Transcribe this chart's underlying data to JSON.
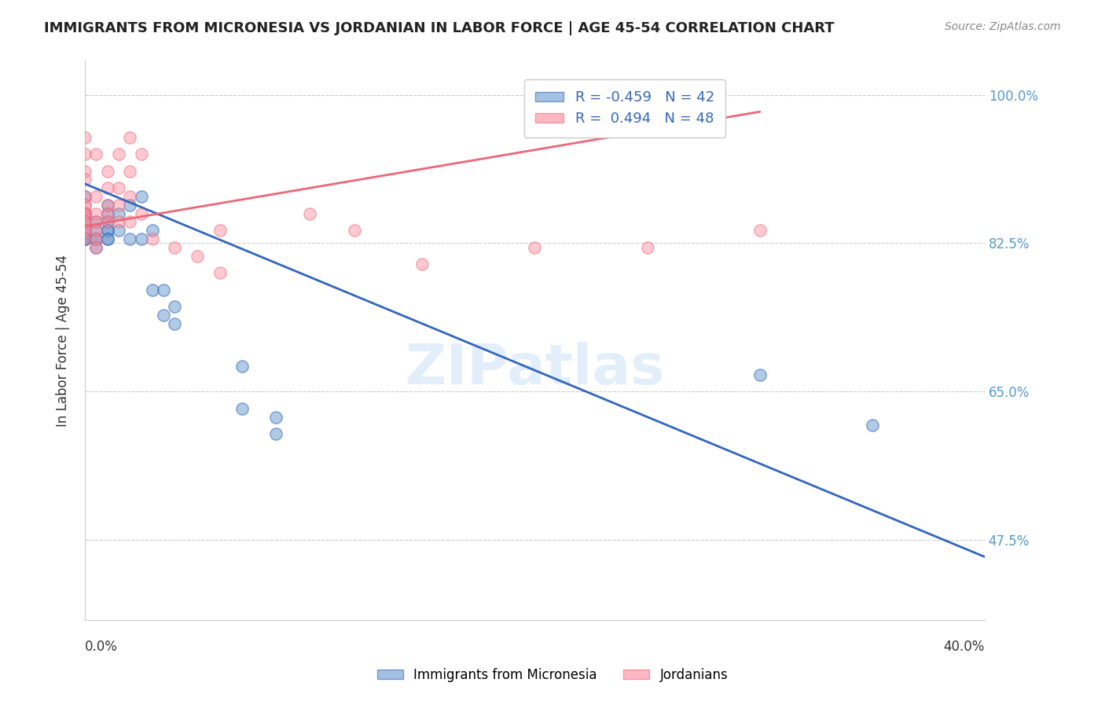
{
  "title": "IMMIGRANTS FROM MICRONESIA VS JORDANIAN IN LABOR FORCE | AGE 45-54 CORRELATION CHART",
  "source": "Source: ZipAtlas.com",
  "ylabel": "In Labor Force | Age 45-54",
  "yticks": [
    "100.0%",
    "82.5%",
    "65.0%",
    "47.5%"
  ],
  "ytick_vals": [
    1.0,
    0.825,
    0.65,
    0.475
  ],
  "xlim": [
    0.0,
    0.4
  ],
  "ylim": [
    0.38,
    1.04
  ],
  "legend1_label": "R = -0.459   N = 42",
  "legend2_label": "R =  0.494   N = 48",
  "watermark": "ZIPatlas",
  "blue_color": "#6699CC",
  "pink_color": "#FF8899",
  "blue_line_color": "#3366BB",
  "pink_line_color": "#EE6677",
  "micronesia_points": [
    [
      0.0,
      0.88
    ],
    [
      0.0,
      0.86
    ],
    [
      0.0,
      0.86
    ],
    [
      0.0,
      0.85
    ],
    [
      0.0,
      0.85
    ],
    [
      0.0,
      0.84
    ],
    [
      0.0,
      0.84
    ],
    [
      0.0,
      0.83
    ],
    [
      0.0,
      0.83
    ],
    [
      0.0,
      0.83
    ],
    [
      0.0,
      0.83
    ],
    [
      0.0,
      0.83
    ],
    [
      0.005,
      0.85
    ],
    [
      0.005,
      0.84
    ],
    [
      0.005,
      0.83
    ],
    [
      0.005,
      0.83
    ],
    [
      0.005,
      0.82
    ],
    [
      0.01,
      0.87
    ],
    [
      0.01,
      0.86
    ],
    [
      0.01,
      0.85
    ],
    [
      0.01,
      0.84
    ],
    [
      0.01,
      0.84
    ],
    [
      0.01,
      0.83
    ],
    [
      0.01,
      0.83
    ],
    [
      0.015,
      0.86
    ],
    [
      0.015,
      0.84
    ],
    [
      0.02,
      0.87
    ],
    [
      0.02,
      0.83
    ],
    [
      0.025,
      0.88
    ],
    [
      0.025,
      0.83
    ],
    [
      0.03,
      0.84
    ],
    [
      0.03,
      0.77
    ],
    [
      0.035,
      0.77
    ],
    [
      0.035,
      0.74
    ],
    [
      0.04,
      0.75
    ],
    [
      0.04,
      0.73
    ],
    [
      0.07,
      0.68
    ],
    [
      0.07,
      0.63
    ],
    [
      0.085,
      0.62
    ],
    [
      0.085,
      0.6
    ],
    [
      0.3,
      0.67
    ],
    [
      0.35,
      0.61
    ]
  ],
  "jordanian_points": [
    [
      0.0,
      0.95
    ],
    [
      0.0,
      0.93
    ],
    [
      0.0,
      0.91
    ],
    [
      0.0,
      0.9
    ],
    [
      0.0,
      0.88
    ],
    [
      0.0,
      0.87
    ],
    [
      0.0,
      0.87
    ],
    [
      0.0,
      0.86
    ],
    [
      0.0,
      0.86
    ],
    [
      0.0,
      0.86
    ],
    [
      0.0,
      0.85
    ],
    [
      0.0,
      0.85
    ],
    [
      0.0,
      0.84
    ],
    [
      0.0,
      0.84
    ],
    [
      0.0,
      0.83
    ],
    [
      0.005,
      0.93
    ],
    [
      0.005,
      0.88
    ],
    [
      0.005,
      0.86
    ],
    [
      0.005,
      0.85
    ],
    [
      0.005,
      0.84
    ],
    [
      0.005,
      0.83
    ],
    [
      0.005,
      0.82
    ],
    [
      0.01,
      0.91
    ],
    [
      0.01,
      0.89
    ],
    [
      0.01,
      0.87
    ],
    [
      0.01,
      0.86
    ],
    [
      0.01,
      0.85
    ],
    [
      0.015,
      0.93
    ],
    [
      0.015,
      0.89
    ],
    [
      0.015,
      0.87
    ],
    [
      0.015,
      0.85
    ],
    [
      0.02,
      0.95
    ],
    [
      0.02,
      0.91
    ],
    [
      0.02,
      0.88
    ],
    [
      0.02,
      0.85
    ],
    [
      0.025,
      0.93
    ],
    [
      0.025,
      0.86
    ],
    [
      0.03,
      0.83
    ],
    [
      0.04,
      0.82
    ],
    [
      0.05,
      0.81
    ],
    [
      0.06,
      0.84
    ],
    [
      0.06,
      0.79
    ],
    [
      0.1,
      0.86
    ],
    [
      0.12,
      0.84
    ],
    [
      0.15,
      0.8
    ],
    [
      0.2,
      0.82
    ],
    [
      0.25,
      0.82
    ],
    [
      0.3,
      0.84
    ]
  ],
  "blue_trendline": [
    [
      0.0,
      0.895
    ],
    [
      0.4,
      0.455
    ]
  ],
  "pink_trendline": [
    [
      0.0,
      0.845
    ],
    [
      0.3,
      0.98
    ]
  ],
  "bottom_legend_labels": [
    "Immigrants from Micronesia",
    "Jordanians"
  ]
}
